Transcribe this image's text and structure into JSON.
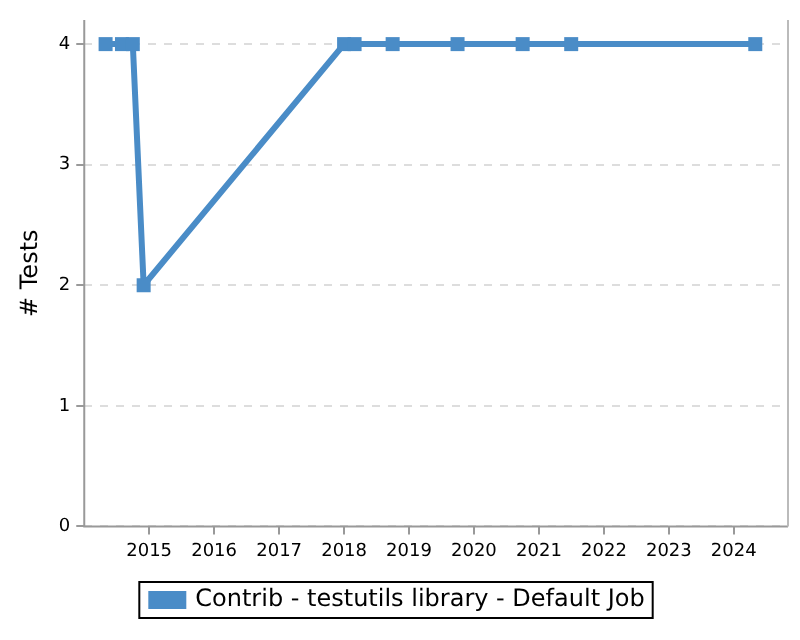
{
  "chart_data": {
    "type": "line",
    "ylabel": "# Tests",
    "x": [
      "2014-05",
      "2014-08",
      "2014-10",
      "2014-12",
      "2018-01",
      "2018-03",
      "2018-10",
      "2019-10",
      "2020-10",
      "2021-07",
      "2024-05"
    ],
    "series": [
      {
        "name": "Contrib - testutils library - Default Job",
        "color": "#4a8cc7",
        "values": [
          4,
          4,
          4,
          2,
          4,
          4,
          4,
          4,
          4,
          4,
          4
        ]
      }
    ],
    "xlim": [
      "2014-01",
      "2024-11"
    ],
    "xticks": [
      "2015",
      "2016",
      "2017",
      "2018",
      "2019",
      "2020",
      "2021",
      "2022",
      "2023",
      "2024"
    ],
    "ylim": [
      0,
      4.2
    ],
    "yticks": [
      0,
      1,
      2,
      3,
      4
    ],
    "grid": "y",
    "legend": "bottom",
    "marker": "square",
    "line_style": "solid"
  }
}
